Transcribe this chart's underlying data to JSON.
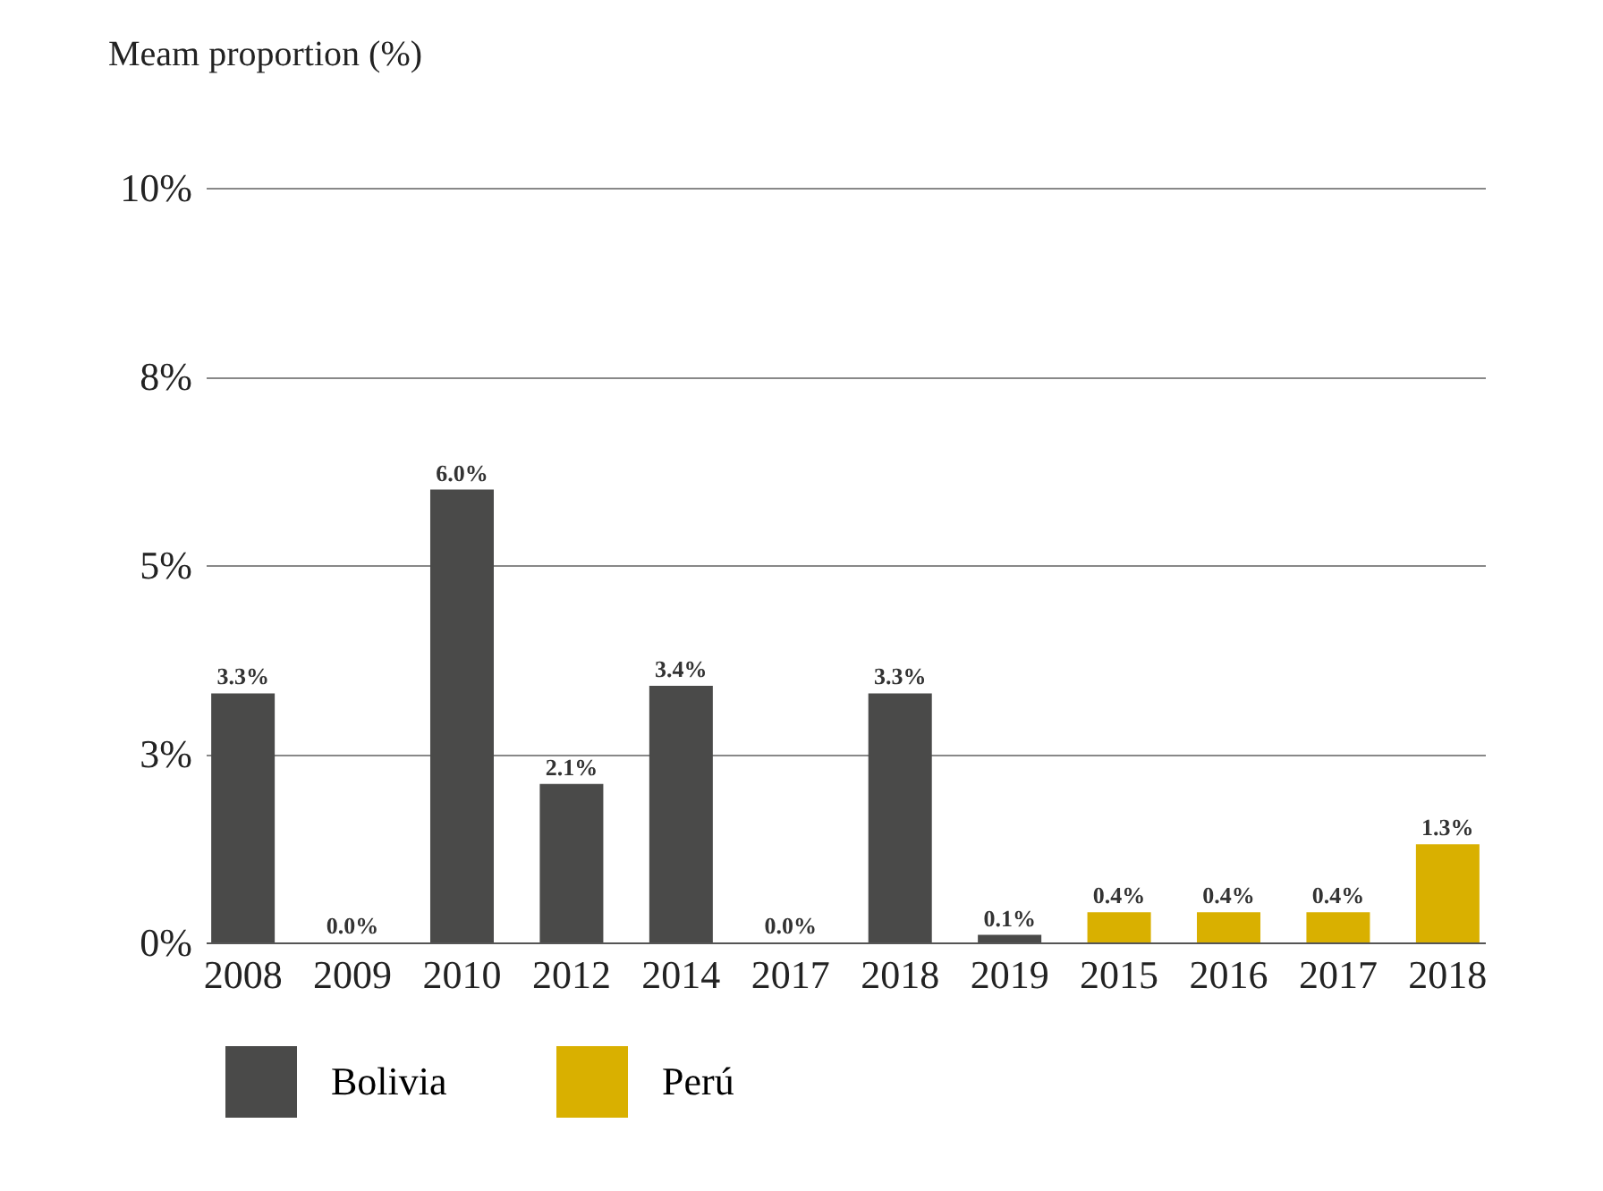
{
  "chart_data": {
    "type": "bar",
    "ylabel": "Meam proportion (%)",
    "categories": [
      "2008",
      "2009",
      "2010",
      "2012",
      "2014",
      "2017",
      "2018",
      "2019",
      "2015",
      "2016",
      "2017",
      "2018"
    ],
    "series": [
      {
        "name": "Bolivia",
        "color": "#4a4a49",
        "values": [
          3.3,
          0.0,
          6.0,
          2.1,
          3.4,
          0.0,
          3.3,
          0.1,
          null,
          null,
          null,
          null
        ],
        "value_labels": [
          "3.3%",
          "0.0%",
          "6.0%",
          "2.1%",
          "3.4%",
          "0.0%",
          "3.3%",
          "0.1%",
          null,
          null,
          null,
          null
        ]
      },
      {
        "name": "Perú",
        "color": "#d9b000",
        "values": [
          null,
          null,
          null,
          null,
          null,
          null,
          null,
          null,
          0.4,
          0.4,
          0.4,
          1.3
        ],
        "value_labels": [
          null,
          null,
          null,
          null,
          null,
          null,
          null,
          null,
          "0.4%",
          "0.4%",
          "0.4%",
          "1.3%"
        ]
      }
    ],
    "ylim": [
      0,
      10
    ],
    "yticks": [
      {
        "value": 0,
        "label": "0%"
      },
      {
        "value": 2.5,
        "label": "3%"
      },
      {
        "value": 5,
        "label": "5%"
      },
      {
        "value": 7.5,
        "label": "8%"
      },
      {
        "value": 10,
        "label": "10%"
      }
    ],
    "grid": "y",
    "legend": "bottom"
  }
}
